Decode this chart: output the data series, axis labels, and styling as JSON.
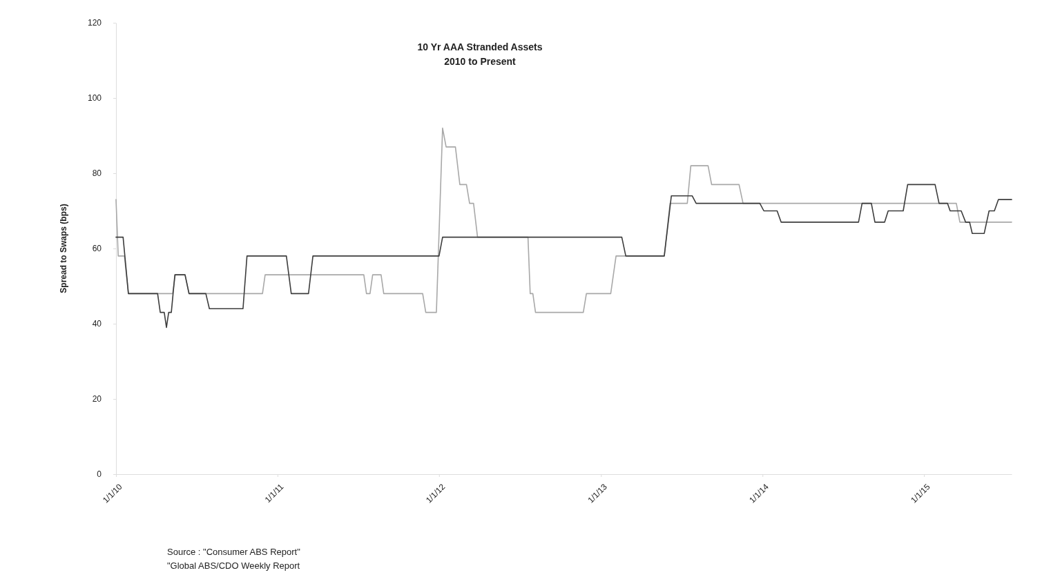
{
  "chart_data": {
    "type": "line",
    "title": "10 Yr AAA Stranded Assets",
    "subtitle": "2010 to Present",
    "ylabel": "Spread to Swaps (bps)",
    "annotations": [
      "Source : \"Consumer ABS Report\"",
      "\"Global ABS/CDO Weekly Report"
    ],
    "xlim": [
      "2010-01-01",
      "2015-07-18"
    ],
    "xticks": [
      {
        "value": "2010-01-01",
        "label": "1/1/10"
      },
      {
        "value": "2011-01-01",
        "label": "1/1/11"
      },
      {
        "value": "2012-01-01",
        "label": "1/1/12"
      },
      {
        "value": "2013-01-01",
        "label": "1/1/13"
      },
      {
        "value": "2014-01-01",
        "label": "1/1/14"
      },
      {
        "value": "2015-01-01",
        "label": "1/1/15"
      }
    ],
    "ylim": [
      0,
      120
    ],
    "yticks": [
      0,
      20,
      40,
      60,
      80,
      100,
      120
    ],
    "grid": false,
    "line_style": "solid",
    "marker": "none",
    "series": [
      {
        "color": "#a8a8a8",
        "x": [
          "2010-01-01",
          "2010-01-06",
          "2010-01-20",
          "2010-01-29",
          "2010-05-09",
          "2010-05-15",
          "2010-06-06",
          "2010-06-15",
          "2010-11-28",
          "2010-12-04",
          "2011-07-15",
          "2011-07-21",
          "2011-07-29",
          "2011-08-04",
          "2011-08-23",
          "2011-08-29",
          "2011-11-25",
          "2011-12-02",
          "2011-12-26",
          "2012-01-09",
          "2012-01-17",
          "2012-02-07",
          "2012-02-17",
          "2012-03-03",
          "2012-03-10",
          "2012-03-19",
          "2012-03-28",
          "2012-07-20",
          "2012-07-25",
          "2012-07-31",
          "2012-08-06",
          "2012-11-22",
          "2012-11-29",
          "2013-01-23",
          "2013-02-04",
          "2013-05-24",
          "2013-06-06",
          "2013-07-15",
          "2013-07-23",
          "2013-08-31",
          "2013-09-08",
          "2013-11-09",
          "2013-11-18",
          "2015-03-15",
          "2015-03-23",
          "2015-07-18"
        ],
        "values": [
          73,
          58,
          58,
          48,
          48,
          53,
          53,
          48,
          48,
          53,
          53,
          48,
          48,
          53,
          53,
          48,
          48,
          43,
          43,
          92,
          87,
          87,
          77,
          77,
          72,
          72,
          63,
          63,
          48,
          48,
          43,
          43,
          48,
          48,
          58,
          58,
          72,
          72,
          82,
          82,
          77,
          77,
          72,
          72,
          67,
          67
        ]
      },
      {
        "color": "#3c3c3c",
        "x": [
          "2010-01-01",
          "2010-01-17",
          "2010-01-29",
          "2010-04-05",
          "2010-04-11",
          "2010-04-20",
          "2010-04-25",
          "2010-04-30",
          "2010-05-06",
          "2010-05-14",
          "2010-06-06",
          "2010-06-15",
          "2010-07-23",
          "2010-07-31",
          "2010-10-15",
          "2010-10-24",
          "2011-01-21",
          "2011-02-01",
          "2011-03-12",
          "2011-03-22",
          "2012-01-01",
          "2012-01-09",
          "2013-02-17",
          "2013-02-26",
          "2013-05-24",
          "2013-06-09",
          "2013-07-26",
          "2013-08-04",
          "2013-12-26",
          "2014-01-04",
          "2014-02-03",
          "2014-02-12",
          "2014-08-06",
          "2014-08-14",
          "2014-09-04",
          "2014-09-12",
          "2014-10-04",
          "2014-10-12",
          "2014-11-15",
          "2014-11-25",
          "2015-01-26",
          "2015-02-04",
          "2015-02-23",
          "2015-03-01",
          "2015-03-26",
          "2015-04-05",
          "2015-04-14",
          "2015-04-20",
          "2015-05-17",
          "2015-05-28",
          "2015-06-09",
          "2015-06-18",
          "2015-07-18"
        ],
        "values": [
          63,
          63,
          48,
          48,
          43,
          43,
          39,
          43,
          43,
          53,
          53,
          48,
          48,
          44,
          44,
          58,
          58,
          48,
          48,
          58,
          58,
          63,
          63,
          58,
          58,
          74,
          74,
          72,
          72,
          70,
          70,
          67,
          67,
          72,
          72,
          67,
          67,
          70,
          70,
          77,
          77,
          72,
          72,
          70,
          70,
          67,
          67,
          64,
          64,
          70,
          70,
          73,
          73
        ]
      }
    ]
  }
}
